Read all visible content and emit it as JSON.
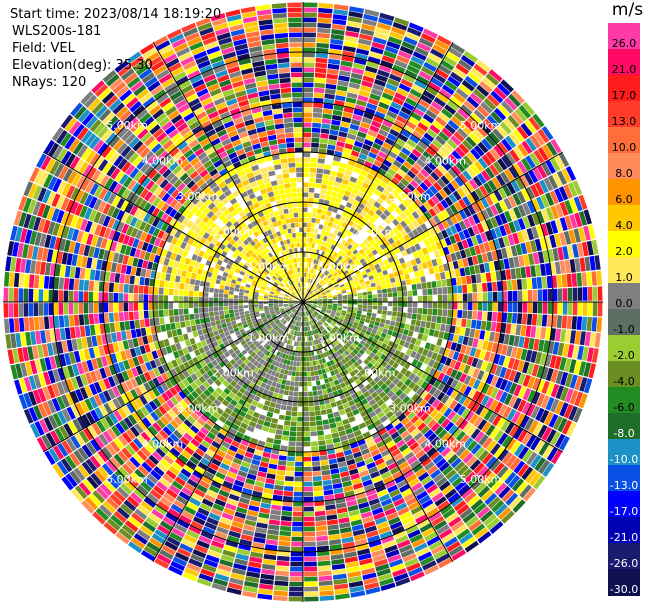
{
  "header": {
    "start_time": "Start time: 2023/08/14 18:19:20",
    "instrument": "WLS200s-181",
    "field": "Field: VEL",
    "elevation": "Elevation(deg): 35.30",
    "nrays": "NRays: 120"
  },
  "colorbar": {
    "unit": "m/s",
    "ticks": [
      "26.0",
      "21.0",
      "17.0",
      "13.0",
      "10.0",
      "8.0",
      "6.0",
      "4.0",
      "2.0",
      "1.0",
      "0.0",
      "-1.0",
      "-2.0",
      "-4.0",
      "-6.0",
      "-8.0",
      "-10.0",
      "-13.0",
      "-17.0",
      "-21.0",
      "-26.0",
      "-30.0"
    ],
    "colors": [
      "#ff3aa6",
      "#ff0a64",
      "#ff1c1c",
      "#ff3c2a",
      "#ff6e3a",
      "#ff8c5a",
      "#ff9400",
      "#ffc800",
      "#ffff00",
      "#ffe85a",
      "#7f7f7f",
      "#5e6e62",
      "#9acd32",
      "#6b8e23",
      "#228b22",
      "#1e6e2a",
      "#1e90c8",
      "#0a50e6",
      "#0000ff",
      "#0000b4",
      "#1a1a6e",
      "#101050"
    ]
  },
  "chart_data": {
    "type": "heatmap",
    "title": "",
    "field": "VEL",
    "unit": "m/s",
    "nrays": 120,
    "range_rings_km": [
      1.0,
      2.0,
      3.0,
      4.0,
      5.0
    ],
    "ring_labels": [
      "1.00km",
      "2.00km",
      "3.00km",
      "4.00km",
      "5.00km"
    ],
    "max_range_km": 6.0,
    "value_range": [
      -30.0,
      26.0
    ]
  }
}
